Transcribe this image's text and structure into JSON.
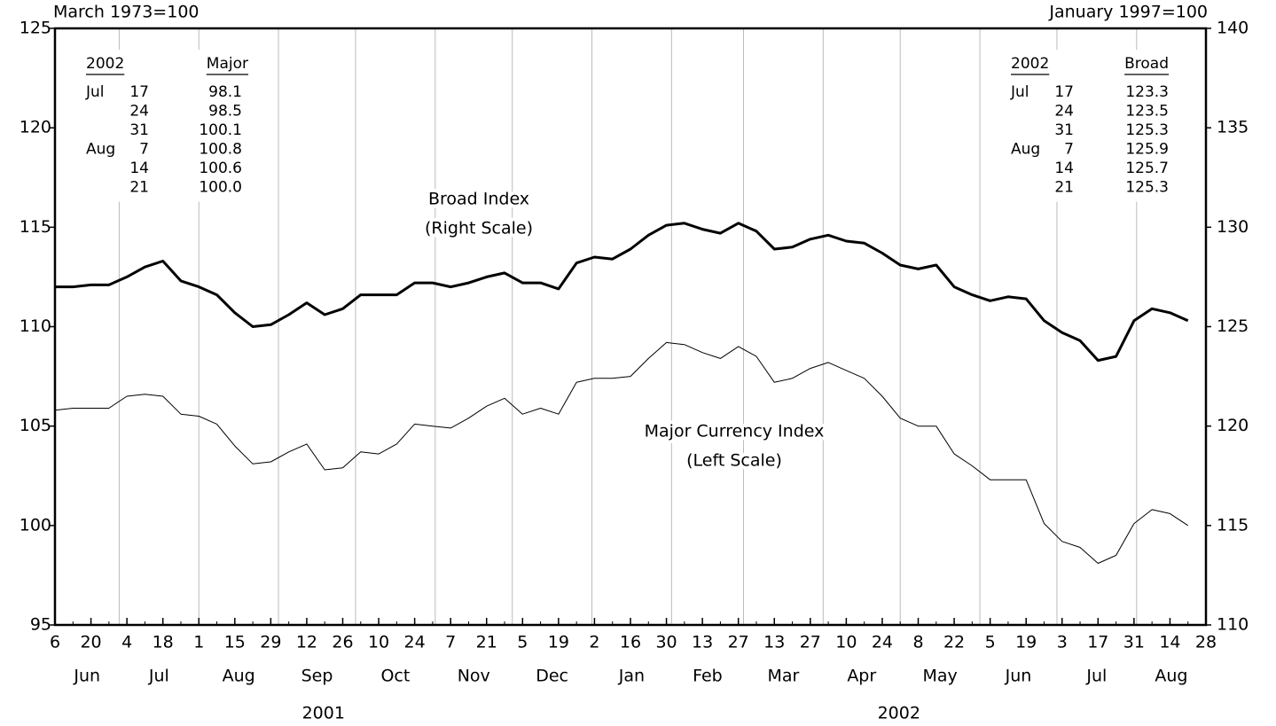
{
  "chart_data": {
    "type": "line",
    "left_unit": "March 1973=100",
    "right_unit": "January 1997=100",
    "annotations": [
      {
        "lines": [
          "Broad Index",
          "(Right Scale)"
        ]
      },
      {
        "lines": [
          "Major Currency Index",
          "(Left Scale)"
        ]
      }
    ],
    "x": [
      "2001-06-06",
      "2001-06-13",
      "2001-06-20",
      "2001-06-27",
      "2001-07-04",
      "2001-07-11",
      "2001-07-18",
      "2001-07-25",
      "2001-08-01",
      "2001-08-08",
      "2001-08-15",
      "2001-08-22",
      "2001-08-29",
      "2001-09-05",
      "2001-09-12",
      "2001-09-19",
      "2001-09-26",
      "2001-10-03",
      "2001-10-10",
      "2001-10-17",
      "2001-10-24",
      "2001-10-31",
      "2001-11-07",
      "2001-11-14",
      "2001-11-21",
      "2001-11-28",
      "2001-12-05",
      "2001-12-12",
      "2001-12-19",
      "2001-12-26",
      "2002-01-02",
      "2002-01-09",
      "2002-01-16",
      "2002-01-23",
      "2002-01-30",
      "2002-02-06",
      "2002-02-13",
      "2002-02-20",
      "2002-02-27",
      "2002-03-06",
      "2002-03-13",
      "2002-03-20",
      "2002-03-27",
      "2002-04-03",
      "2002-04-10",
      "2002-04-17",
      "2002-04-24",
      "2002-05-01",
      "2002-05-08",
      "2002-05-15",
      "2002-05-22",
      "2002-05-29",
      "2002-06-05",
      "2002-06-12",
      "2002-06-19",
      "2002-06-26",
      "2002-07-03",
      "2002-07-10",
      "2002-07-17",
      "2002-07-24",
      "2002-07-31",
      "2002-08-07",
      "2002-08-14",
      "2002-08-21"
    ],
    "series": [
      {
        "name": "Broad Index",
        "axis": "y2",
        "color": "#000000",
        "width": 3,
        "values": [
          127.0,
          127.0,
          127.1,
          127.1,
          127.5,
          128.0,
          128.3,
          127.3,
          127.0,
          126.6,
          125.7,
          125.0,
          125.1,
          125.6,
          126.2,
          125.6,
          125.9,
          126.6,
          126.6,
          126.6,
          127.2,
          127.2,
          127.0,
          127.2,
          127.5,
          127.7,
          127.2,
          127.2,
          126.9,
          128.2,
          128.5,
          128.4,
          128.9,
          129.6,
          130.1,
          130.2,
          129.9,
          129.7,
          130.2,
          129.8,
          128.9,
          129.0,
          129.4,
          129.6,
          129.3,
          129.2,
          128.7,
          128.1,
          127.9,
          128.1,
          127.0,
          126.6,
          126.3,
          126.5,
          126.4,
          125.3,
          124.7,
          124.3,
          123.3,
          123.5,
          125.3,
          125.9,
          125.7,
          125.3
        ]
      },
      {
        "name": "Major Currency Index",
        "axis": "y",
        "color": "#000000",
        "width": 1,
        "values": [
          105.8,
          105.9,
          105.9,
          105.9,
          106.5,
          106.6,
          106.5,
          105.6,
          105.5,
          105.1,
          104.0,
          103.1,
          103.2,
          103.7,
          104.1,
          102.8,
          102.9,
          103.7,
          103.6,
          104.1,
          105.1,
          105.0,
          104.9,
          105.4,
          106.0,
          106.4,
          105.6,
          105.9,
          105.6,
          107.2,
          107.4,
          107.4,
          107.5,
          108.4,
          109.2,
          109.1,
          108.7,
          108.4,
          109.0,
          108.5,
          107.2,
          107.4,
          107.9,
          108.2,
          107.8,
          107.4,
          106.5,
          105.4,
          105.0,
          105.0,
          103.6,
          103.0,
          102.3,
          102.3,
          102.3,
          100.1,
          99.2,
          98.9,
          98.1,
          98.5,
          100.1,
          100.8,
          100.6,
          100.0
        ]
      }
    ],
    "xlim": [
      "2001-06-06",
      "2002-08-28"
    ],
    "xticks": [
      {
        "value": "2001-06-06",
        "label": "6"
      },
      {
        "value": "2001-06-20",
        "label": "20"
      },
      {
        "value": "2001-07-04",
        "label": "4"
      },
      {
        "value": "2001-07-18",
        "label": "18"
      },
      {
        "value": "2001-08-01",
        "label": "1"
      },
      {
        "value": "2001-08-15",
        "label": "15"
      },
      {
        "value": "2001-08-29",
        "label": "29"
      },
      {
        "value": "2001-09-12",
        "label": "12"
      },
      {
        "value": "2001-09-26",
        "label": "26"
      },
      {
        "value": "2001-10-10",
        "label": "10"
      },
      {
        "value": "2001-10-24",
        "label": "24"
      },
      {
        "value": "2001-11-07",
        "label": "7"
      },
      {
        "value": "2001-11-21",
        "label": "21"
      },
      {
        "value": "2001-12-05",
        "label": "5"
      },
      {
        "value": "2001-12-19",
        "label": "19"
      },
      {
        "value": "2002-01-02",
        "label": "2"
      },
      {
        "value": "2002-01-16",
        "label": "16"
      },
      {
        "value": "2002-01-30",
        "label": "30"
      },
      {
        "value": "2002-02-13",
        "label": "13"
      },
      {
        "value": "2002-02-27",
        "label": "27"
      },
      {
        "value": "2002-03-13",
        "label": "13"
      },
      {
        "value": "2002-03-27",
        "label": "27"
      },
      {
        "value": "2002-04-10",
        "label": "10"
      },
      {
        "value": "2002-04-24",
        "label": "24"
      },
      {
        "value": "2002-05-08",
        "label": "8"
      },
      {
        "value": "2002-05-22",
        "label": "22"
      },
      {
        "value": "2002-06-05",
        "label": "5"
      },
      {
        "value": "2002-06-19",
        "label": "19"
      },
      {
        "value": "2002-07-03",
        "label": "3"
      },
      {
        "value": "2002-07-17",
        "label": "17"
      },
      {
        "value": "2002-07-31",
        "label": "31"
      },
      {
        "value": "2002-08-14",
        "label": "14"
      },
      {
        "value": "2002-08-28",
        "label": "28"
      }
    ],
    "months": [
      {
        "value": "2001-06",
        "label": "Jun"
      },
      {
        "value": "2001-07",
        "label": "Jul"
      },
      {
        "value": "2001-08",
        "label": "Aug"
      },
      {
        "value": "2001-09",
        "label": "Sep"
      },
      {
        "value": "2001-10",
        "label": "Oct"
      },
      {
        "value": "2001-11",
        "label": "Nov"
      },
      {
        "value": "2001-12",
        "label": "Dec"
      },
      {
        "value": "2002-01",
        "label": "Jan"
      },
      {
        "value": "2002-02",
        "label": "Feb"
      },
      {
        "value": "2002-03",
        "label": "Mar"
      },
      {
        "value": "2002-04",
        "label": "Apr"
      },
      {
        "value": "2002-05",
        "label": "May"
      },
      {
        "value": "2002-06",
        "label": "Jun"
      },
      {
        "value": "2002-07",
        "label": "Jul"
      },
      {
        "value": "2002-08",
        "label": "Aug"
      }
    ],
    "years": [
      2001,
      2002
    ],
    "ylim": [
      95,
      125
    ],
    "yticks": [
      95,
      100,
      105,
      110,
      115,
      120,
      125
    ],
    "y2lim": [
      110,
      140
    ],
    "y2ticks": [
      110,
      115,
      120,
      125,
      130,
      135,
      140
    ],
    "grid": "x-months",
    "tables": [
      {
        "side": "left",
        "header": [
          "2002",
          "Major"
        ],
        "rows": [
          {
            "month": "Jul",
            "day": "17",
            "value": "98.1"
          },
          {
            "day": "24",
            "value": "98.5"
          },
          {
            "day": "31",
            "value": "100.1"
          },
          {
            "month": "Aug",
            "day": "7",
            "value": "100.8"
          },
          {
            "day": "14",
            "value": "100.6"
          },
          {
            "day": "21",
            "value": "100.0"
          }
        ]
      },
      {
        "side": "right",
        "header": [
          "2002",
          "Broad"
        ],
        "rows": [
          {
            "month": "Jul",
            "day": "17",
            "value": "123.3"
          },
          {
            "day": "24",
            "value": "123.5"
          },
          {
            "day": "31",
            "value": "125.3"
          },
          {
            "month": "Aug",
            "day": "7",
            "value": "125.9"
          },
          {
            "day": "14",
            "value": "125.7"
          },
          {
            "day": "21",
            "value": "125.3"
          }
        ]
      }
    ]
  }
}
